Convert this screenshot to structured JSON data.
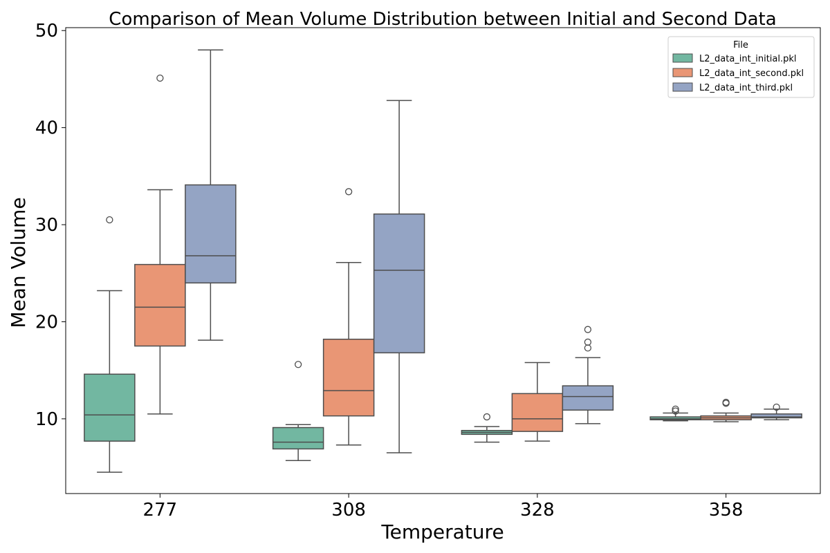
{
  "chart_data": {
    "type": "box",
    "title": "Comparison of Mean Volume Distribution between Initial and Second Data",
    "xlabel": "Temperature",
    "ylabel": "Mean Volume",
    "categories": [
      "277",
      "308",
      "328",
      "358"
    ],
    "ylim": [
      2.3,
      50.3
    ],
    "yticks": [
      10,
      20,
      30,
      40,
      50
    ],
    "grid": false,
    "legend": {
      "title": "File",
      "placement": "top-right"
    },
    "series": [
      {
        "name": "L2_data_int_initial.pkl",
        "color": "#72b7a1",
        "boxes": [
          {
            "whisker_low": 4.5,
            "q1": 7.7,
            "median": 10.4,
            "q3": 14.6,
            "whisker_high": 23.2,
            "outliers": [
              30.5
            ]
          },
          {
            "whisker_low": 5.7,
            "q1": 6.9,
            "median": 7.6,
            "q3": 9.1,
            "whisker_high": 9.4,
            "outliers": [
              15.6
            ]
          },
          {
            "whisker_low": 7.6,
            "q1": 8.4,
            "median": 8.6,
            "q3": 8.8,
            "whisker_high": 9.2,
            "outliers": [
              10.2
            ]
          },
          {
            "whisker_low": 9.8,
            "q1": 9.9,
            "median": 10.0,
            "q3": 10.2,
            "whisker_high": 10.6,
            "outliers": [
              10.8,
              11.0
            ]
          }
        ]
      },
      {
        "name": "L2_data_int_second.pkl",
        "color": "#e99675",
        "boxes": [
          {
            "whisker_low": 10.5,
            "q1": 17.5,
            "median": 21.5,
            "q3": 25.9,
            "whisker_high": 33.6,
            "outliers": [
              45.1
            ]
          },
          {
            "whisker_low": 7.3,
            "q1": 10.3,
            "median": 12.9,
            "q3": 18.2,
            "whisker_high": 26.1,
            "outliers": [
              33.4
            ]
          },
          {
            "whisker_low": 7.7,
            "q1": 8.7,
            "median": 10.0,
            "q3": 12.6,
            "whisker_high": 15.8,
            "outliers": []
          },
          {
            "whisker_low": 9.7,
            "q1": 9.9,
            "median": 10.1,
            "q3": 10.3,
            "whisker_high": 10.6,
            "outliers": [
              11.6,
              11.7
            ]
          }
        ]
      },
      {
        "name": "L2_data_int_third.pkl",
        "color": "#94a4c4",
        "boxes": [
          {
            "whisker_low": 18.1,
            "q1": 24.0,
            "median": 26.8,
            "q3": 34.1,
            "whisker_high": 48.0,
            "outliers": []
          },
          {
            "whisker_low": 6.5,
            "q1": 16.8,
            "median": 25.3,
            "q3": 31.1,
            "whisker_high": 42.8,
            "outliers": []
          },
          {
            "whisker_low": 9.5,
            "q1": 10.9,
            "median": 12.3,
            "q3": 13.4,
            "whisker_high": 16.3,
            "outliers": [
              17.3,
              17.9,
              19.2
            ]
          },
          {
            "whisker_low": 9.9,
            "q1": 10.1,
            "median": 10.2,
            "q3": 10.5,
            "whisker_high": 11.0,
            "outliers": [
              11.2
            ]
          }
        ]
      }
    ]
  }
}
